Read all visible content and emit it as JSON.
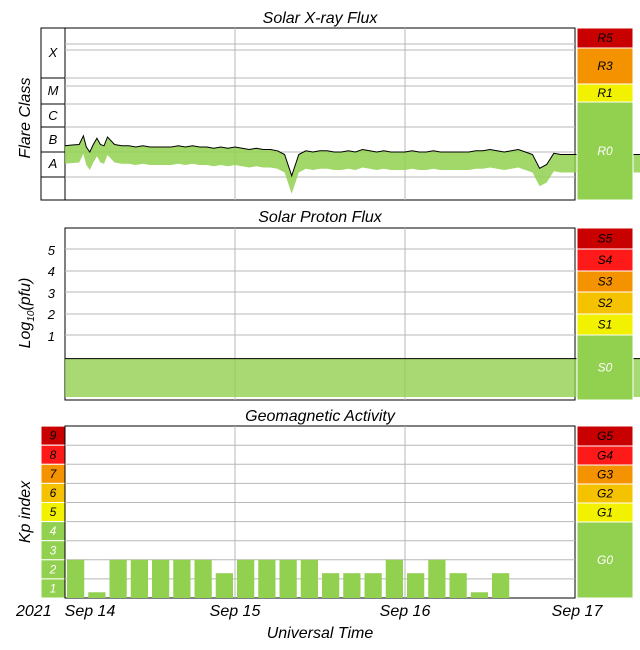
{
  "colors": {
    "green": "#92d050",
    "yellow": "#f2f200",
    "gold": "#f5c200",
    "orange": "#f59200",
    "red": "#ff1a1a",
    "darkred": "#c80000",
    "grid": "#b8b8b8"
  },
  "xray": {
    "title": "Solar X-ray Flux",
    "ylabel": "Flare Class",
    "classes": [
      "X",
      "M",
      "C",
      "B",
      "A"
    ],
    "scale": [
      {
        "label": "R5",
        "color": "#c80000"
      },
      {
        "label": "R3",
        "color": "#f59200"
      },
      {
        "label": "R1",
        "color": "#f2f200"
      },
      {
        "label": "R0",
        "color": "#92d050"
      }
    ]
  },
  "proton": {
    "title": "Solar Proton Flux",
    "ylabel_main": "Log",
    "ylabel_sub": "10",
    "ylabel_rest": "(pfu)",
    "ticks": [
      "5",
      "4",
      "3",
      "2",
      "1"
    ],
    "scale": [
      {
        "label": "S5",
        "color": "#c80000"
      },
      {
        "label": "S4",
        "color": "#ff1a1a"
      },
      {
        "label": "S3",
        "color": "#f59200"
      },
      {
        "label": "S2",
        "color": "#f5c200"
      },
      {
        "label": "S1",
        "color": "#f2f200"
      },
      {
        "label": "S0",
        "color": "#92d050"
      }
    ]
  },
  "geomag": {
    "title": "Geomagnetic Activity",
    "ylabel": "Kp index",
    "scale": [
      {
        "label": "G5",
        "color": "#c80000"
      },
      {
        "label": "G4",
        "color": "#ff1a1a"
      },
      {
        "label": "G3",
        "color": "#f59200"
      },
      {
        "label": "G2",
        "color": "#f5c200"
      },
      {
        "label": "G1",
        "color": "#f2f200"
      },
      {
        "label": "G0",
        "color": "#92d050"
      }
    ],
    "kp_levels": [
      {
        "label": "9",
        "color": "#c80000"
      },
      {
        "label": "8",
        "color": "#ff1a1a"
      },
      {
        "label": "7",
        "color": "#f59200"
      },
      {
        "label": "6",
        "color": "#f5c200"
      },
      {
        "label": "5",
        "color": "#f2f200"
      },
      {
        "label": "4",
        "color": "#92d050"
      },
      {
        "label": "3",
        "color": "#92d050"
      },
      {
        "label": "2",
        "color": "#92d050"
      },
      {
        "label": "1",
        "color": "#92d050"
      }
    ]
  },
  "x_axis": {
    "year": "2021",
    "ticks": [
      "Sep 14",
      "Sep 15",
      "Sep 16",
      "Sep 17"
    ],
    "label": "Universal Time"
  },
  "chart_data": [
    {
      "type": "line",
      "title": "Solar X-ray Flux",
      "ylabel": "Flare Class",
      "y_categories": [
        "A",
        "B",
        "C",
        "M",
        "X"
      ],
      "x_range": [
        "2021-09-14 00:00",
        "2021-09-17 00:00"
      ],
      "series": [
        {
          "x_hours": [
            0,
            1,
            2,
            2.6,
            3,
            3.5,
            4,
            4.5,
            5,
            5.5,
            6,
            7,
            8,
            9,
            10,
            11,
            12,
            13,
            14,
            15,
            16,
            17,
            18,
            19,
            20,
            21,
            22,
            23,
            24,
            25,
            26,
            27,
            28,
            29,
            30,
            31,
            32,
            33,
            34,
            35,
            36,
            37,
            38,
            39,
            40,
            41,
            42,
            43,
            44,
            45,
            46,
            47,
            48,
            49,
            50,
            51,
            52,
            53,
            54,
            55,
            56,
            57,
            58,
            59,
            60,
            61,
            62,
            63,
            64,
            65,
            66,
            67,
            68,
            69,
            70,
            71,
            72,
            73,
            74,
            75,
            76,
            77,
            78,
            79,
            80,
            81,
            82,
            83,
            84,
            85,
            86,
            87,
            88
          ],
          "y_class": [
            2.25,
            2.28,
            2.3,
            2.65,
            2.2,
            2.0,
            2.3,
            2.55,
            2.3,
            2.25,
            2.6,
            2.3,
            2.25,
            2.25,
            2.2,
            2.25,
            2.2,
            2.2,
            2.2,
            2.2,
            2.25,
            2.2,
            2.25,
            2.2,
            2.2,
            2.15,
            2.2,
            2.15,
            2.2,
            2.15,
            2.1,
            2.15,
            2.1,
            2.1,
            2.05,
            1.9,
            1.05,
            1.9,
            2.05,
            2.0,
            2.05,
            2.05,
            2.0,
            2.0,
            2.05,
            2.0,
            2.1,
            2.05,
            2.0,
            2.05,
            2.0,
            2.0,
            2.0,
            2.05,
            2.0,
            2.0,
            2.05,
            2.0,
            2.0,
            2.0,
            2.0,
            2.0,
            2.05,
            2.05,
            2.1,
            2.05,
            2.0,
            2.05,
            2.1,
            2.0,
            1.9,
            1.35,
            1.5,
            1.95,
            1.9,
            1.9,
            1.9,
            1.9,
            1.9,
            1.9,
            1.9,
            1.9,
            1.9,
            1.9,
            1.9,
            1.9,
            1.9,
            1.9,
            1.9,
            1.9,
            1.9,
            1.9,
            1.9
          ]
        }
      ]
    },
    {
      "type": "line",
      "title": "Solar Proton Flux",
      "ylabel": "Log10(pfu)",
      "ylim": [
        -1.3,
        6
      ],
      "x_range": [
        "2021-09-14 00:00",
        "2021-09-17 00:00"
      ],
      "series": [
        {
          "x_hours": [
            0,
            8,
            16,
            24,
            32,
            40,
            48,
            56,
            64,
            72,
            80,
            88
          ],
          "y_log10": [
            -0.1,
            -0.1,
            -0.1,
            -0.1,
            -0.1,
            -0.1,
            -0.1,
            -0.1,
            -0.1,
            -0.1,
            -0.1,
            -0.1
          ]
        }
      ]
    },
    {
      "type": "bar",
      "title": "Geomagnetic Activity",
      "ylabel": "Kp index",
      "ylim": [
        0,
        9
      ],
      "x_range": [
        "2021-09-14 00:00",
        "2021-09-17 00:00"
      ],
      "bar_hours": 3,
      "values": [
        2,
        0.3,
        2,
        2,
        2,
        2,
        2,
        1.3,
        2,
        2,
        2,
        2,
        1.3,
        1.3,
        1.3,
        2,
        1.3,
        2,
        1.3,
        0.3,
        1.3
      ]
    }
  ]
}
